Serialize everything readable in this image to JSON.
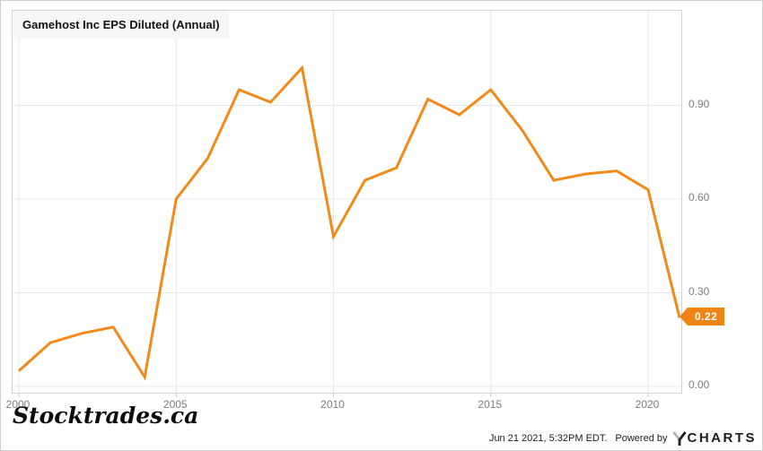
{
  "title": "Gamehost Inc EPS Diluted (Annual)",
  "watermark": "Stocktrades.ca",
  "last_point_badge": "0.22",
  "footer": {
    "timestamp": "Jun 21 2021, 5:32PM EDT.",
    "powered_by": "Powered by",
    "brand": "CHARTS",
    "brand_icon": "ycharts-y-logo-icon"
  },
  "colors": {
    "line": "#F28A1A",
    "badge": "#EE8414",
    "grid": "#E8E8E8",
    "tick": "#C9C9C9",
    "plot_border": "#D4D4D4",
    "axis_label": "#7D7D7D",
    "title_bg": "#F6F6F6"
  },
  "chart_data": {
    "type": "line",
    "title": "Gamehost Inc EPS Diluted (Annual)",
    "x": [
      2000,
      2001,
      2002,
      2003,
      2004,
      2005,
      2006,
      2007,
      2008,
      2009,
      2010,
      2011,
      2012,
      2013,
      2014,
      2015,
      2016,
      2017,
      2018,
      2019,
      2020,
      2021
    ],
    "series": [
      {
        "name": "Gamehost Inc EPS Diluted (Annual)",
        "values": [
          0.05,
          0.14,
          0.17,
          0.19,
          0.03,
          0.6,
          0.73,
          0.95,
          0.91,
          1.02,
          0.48,
          0.66,
          0.7,
          0.92,
          0.87,
          0.95,
          0.82,
          0.66,
          0.68,
          0.69,
          0.63,
          0.22
        ]
      }
    ],
    "x_ticks": [
      2000,
      2005,
      2010,
      2015,
      2020
    ],
    "y_ticks": [
      0.0,
      0.3,
      0.6,
      0.9
    ],
    "xlim": [
      1999.8,
      2021.1
    ],
    "ylim": [
      -0.02,
      1.2
    ],
    "grid": true,
    "legend_position": "top-left",
    "last_value_label": "0.22"
  }
}
